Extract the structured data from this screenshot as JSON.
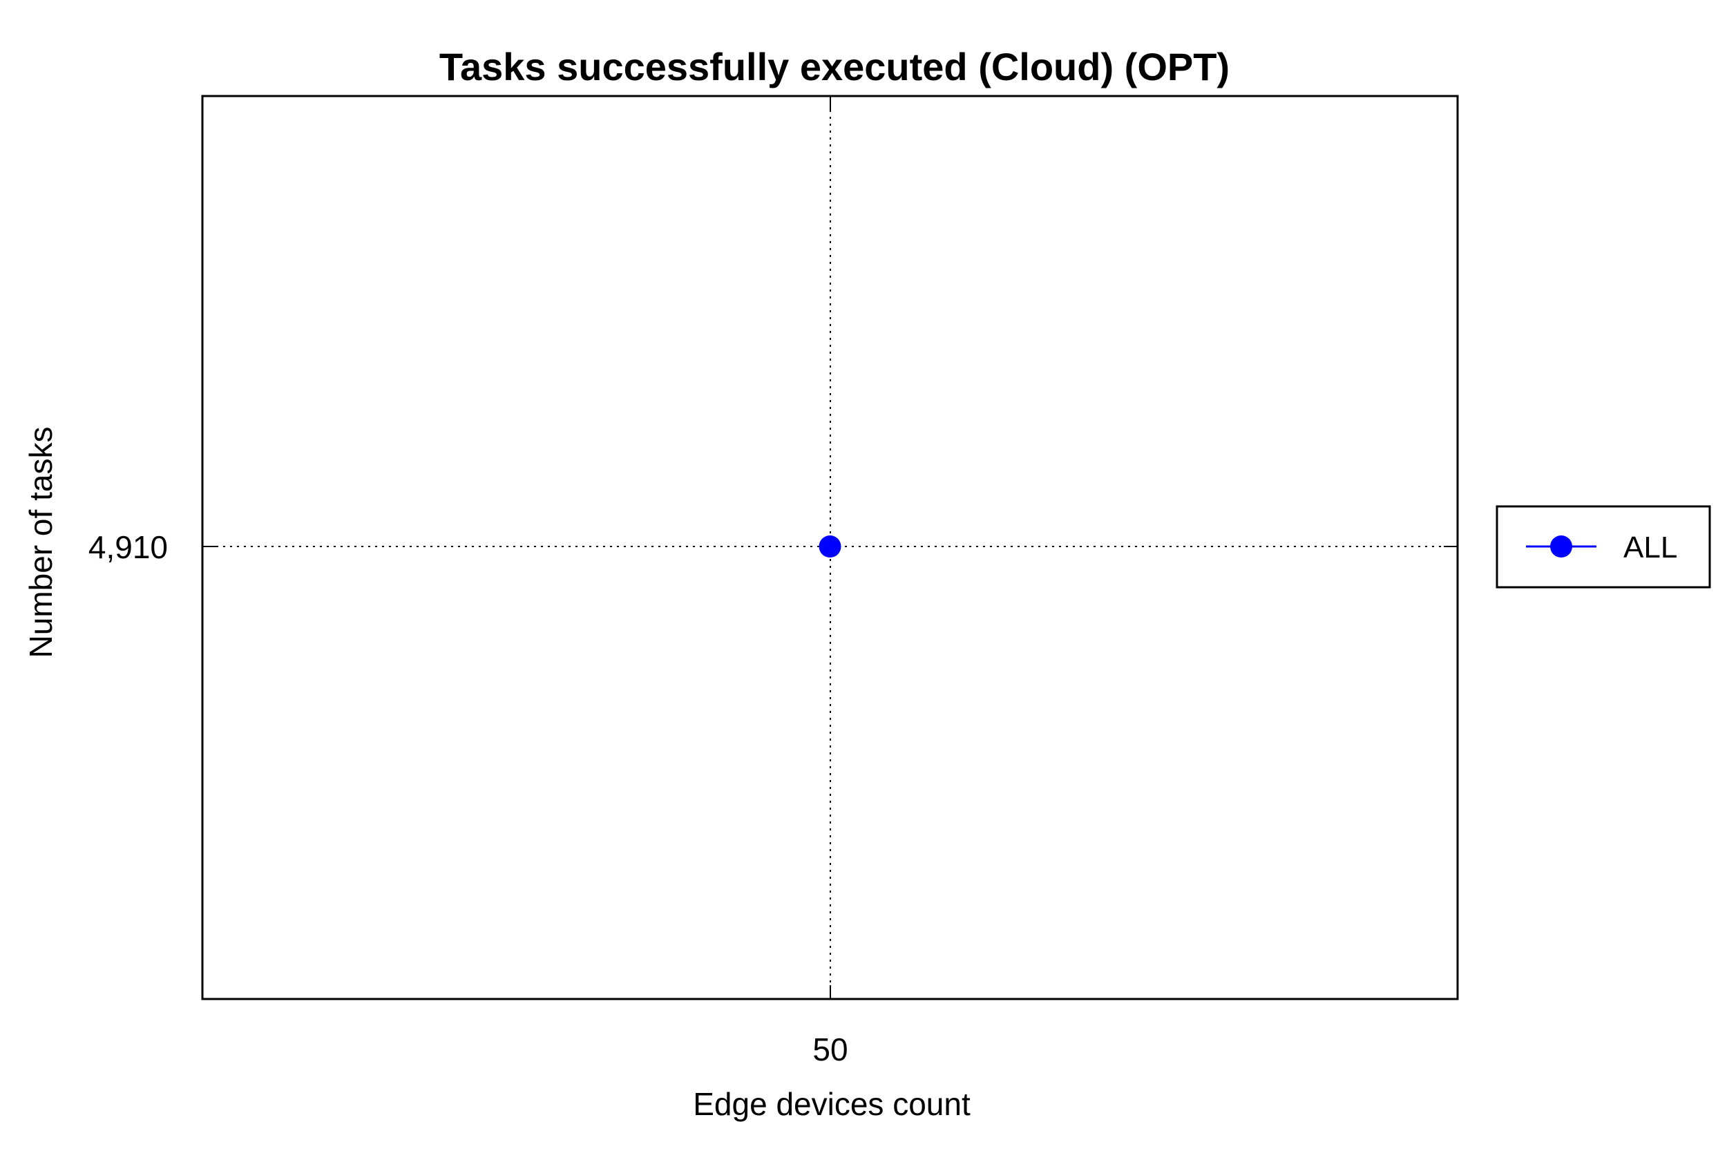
{
  "chart_data": {
    "type": "line",
    "title": "Tasks successfully executed (Cloud) (OPT)",
    "xlabel": "Edge devices count",
    "ylabel": "Number of tasks",
    "x_ticks": [
      "50"
    ],
    "y_ticks": [
      "4,910"
    ],
    "x": [
      50
    ],
    "series": [
      {
        "name": "ALL",
        "values": [
          4910
        ],
        "color": "#0000ff",
        "marker": "circle"
      }
    ],
    "grid": true,
    "legend_position": "right"
  }
}
